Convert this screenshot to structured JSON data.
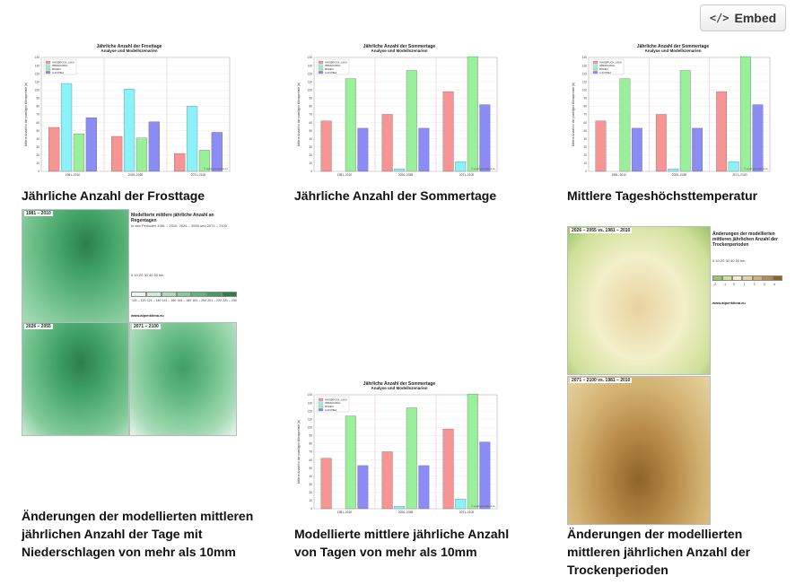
{
  "embed": {
    "label": "Embed",
    "icon": "code-icon"
  },
  "cards": [
    {
      "caption": "Jährliche Anzahl der Frosttage"
    },
    {
      "caption": "Jährliche Anzahl der Sommertage"
    },
    {
      "caption": "Mittlere Tageshöchsttemperatur"
    },
    {
      "caption": "Änderungen der modellierten mittleren jährlichen Anzahl der Tage mit Niederschlagen von mehr als 10mm"
    },
    {
      "caption": "Modellierte mittlere jährliche Anzahl von Tagen von mehr als 10mm"
    },
    {
      "caption": "Änderungen der modellierten mittleren jährlichen Anzahl der Trockenperioden"
    }
  ],
  "chart_data": [
    {
      "type": "bar",
      "title": "Jährliche Anzahl der Frosttage",
      "subtitle": "Analyse und Modellszenarien",
      "ylabel": "Mittlere Anzahl in der jeweiligen Klimaperiode (d)",
      "categories": [
        "1981–2010",
        "2026–2055",
        "2071–2100"
      ],
      "ylim": [
        0,
        140
      ],
      "yticks": [
        0,
        10,
        20,
        30,
        40,
        50,
        60,
        70,
        80,
        90,
        100,
        110,
        120,
        130,
        140
      ],
      "legend_position": "top-left",
      "source": "© www.alpenklima.eu",
      "series": [
        {
          "name": "INNSBRUCK_UNIV.",
          "color": "#f79595",
          "values": [
            54,
            43,
            22
          ]
        },
        {
          "name": "OBERGURGL",
          "color": "#8cf2fa",
          "values": [
            108,
            101,
            80
          ]
        },
        {
          "name": "BOZEN",
          "color": "#9af09a",
          "values": [
            46,
            41,
            26
          ]
        },
        {
          "name": "A-KOPIEA",
          "color": "#8c8cf5",
          "values": [
            66,
            61,
            48
          ]
        }
      ]
    },
    {
      "type": "bar",
      "title": "Jährliche Anzahl der Sommertage",
      "subtitle": "Analyse und Modellszenarien",
      "ylabel": "Mittlere Anzahl in der jeweiligen Klimaperiode (d)",
      "categories": [
        "1981–2010",
        "2026–2055",
        "2071–2100"
      ],
      "ylim": [
        0,
        140
      ],
      "yticks": [
        0,
        10,
        20,
        30,
        40,
        50,
        60,
        70,
        80,
        90,
        100,
        110,
        120,
        130,
        140
      ],
      "legend_position": "top-left",
      "source": "© www.alpenklima.eu",
      "series": [
        {
          "name": "INNSBRUCK_UNIV.",
          "color": "#f79595",
          "values": [
            62,
            70,
            98
          ]
        },
        {
          "name": "OBERGURGL",
          "color": "#8cf2fa",
          "values": [
            0,
            3,
            12
          ]
        },
        {
          "name": "BOZEN",
          "color": "#9af09a",
          "values": [
            114,
            124,
            141
          ]
        },
        {
          "name": "A-KOPIEA",
          "color": "#8c8cf5",
          "values": [
            53,
            53,
            82
          ]
        }
      ]
    },
    {
      "type": "bar",
      "title": "Jährliche Anzahl der Sommertage",
      "subtitle": "Analyse und Modellszenarien",
      "ylabel": "Mittlere Anzahl in der jeweiligen Klimaperiode (d)",
      "categories": [
        "1981–2010",
        "2026–2055",
        "2071–2100"
      ],
      "ylim": [
        0,
        140
      ],
      "yticks": [
        0,
        10,
        20,
        30,
        40,
        50,
        60,
        70,
        80,
        90,
        100,
        110,
        120,
        130,
        140
      ],
      "legend_position": "top-left",
      "source": "© www.alpenklima.eu",
      "series": [
        {
          "name": "INNSBRUCK_UNIV.",
          "color": "#f79595",
          "values": [
            62,
            70,
            98
          ]
        },
        {
          "name": "OBERGURGL",
          "color": "#8cf2fa",
          "values": [
            0,
            3,
            12
          ]
        },
        {
          "name": "BOZEN",
          "color": "#9af09a",
          "values": [
            114,
            124,
            141
          ]
        },
        {
          "name": "A-KOPIEA",
          "color": "#8c8cf5",
          "values": [
            53,
            53,
            82
          ]
        }
      ]
    },
    {
      "type": "bar",
      "title": "Jährliche Anzahl der Sommertage",
      "subtitle": "Analyse und Modellszenarien",
      "ylabel": "Mittlere Anzahl in der jeweiligen Klimaperiode (d)",
      "categories": [
        "1981–2010",
        "2026–2055",
        "2071–2100"
      ],
      "ylim": [
        0,
        140
      ],
      "yticks": [
        0,
        10,
        20,
        30,
        40,
        50,
        60,
        70,
        80,
        90,
        100,
        110,
        120,
        130,
        140
      ],
      "legend_position": "top-left",
      "source": "© www.alpenklima.eu",
      "series": [
        {
          "name": "INNSBRUCK_UNIV.",
          "color": "#f79595",
          "values": [
            62,
            70,
            98
          ]
        },
        {
          "name": "OBERGURGL",
          "color": "#8cf2fa",
          "values": [
            0,
            3,
            12
          ]
        },
        {
          "name": "BOZEN",
          "color": "#9af09a",
          "values": [
            114,
            124,
            141
          ]
        },
        {
          "name": "A-KOPIEA",
          "color": "#8c8cf5",
          "values": [
            53,
            53,
            82
          ]
        }
      ]
    }
  ],
  "map_rain": {
    "title": "Modellierte mittlere jährliche Anzahl an Regentagen",
    "subtitle": "in den Perioden 1981 – 2010, 2026 – 2055 und 2071 – 2100",
    "panels": [
      "1981 – 2010",
      "2026 – 2055",
      "2071 – 2100"
    ],
    "scale": "0  10  20  30  40  50 km",
    "legend_values": [
      "101 – 120",
      "121 – 140",
      "141 – 160",
      "161 – 180",
      "181 – 200",
      "201 – 220",
      "221 – 240"
    ],
    "legend_colors": [
      "#eaf6ee",
      "#cdebd6",
      "#a9dcb9",
      "#84cb9b",
      "#5fb77e",
      "#3f9f63",
      "#2a7f4b"
    ],
    "url": "www.alpenklima.eu"
  },
  "map_dry": {
    "title": "Änderungen der modellierten mittleren jährlichen Anzahl der Trockenperioden",
    "panels": [
      "2026 – 2055 vs. 1981 – 2010",
      "2071 – 2100 vs. 1981 – 2010"
    ],
    "scale": "0  10  20  30  40  50 km",
    "legend_values": [
      "-2",
      "-1",
      "0",
      "1",
      "2",
      "3",
      "4"
    ],
    "legend_colors": [
      "#9cc46a",
      "#cfe09a",
      "#f3efc9",
      "#e7d3a0",
      "#d3b272",
      "#b88c48",
      "#8e6428"
    ],
    "url": "www.alpenklima.eu"
  }
}
